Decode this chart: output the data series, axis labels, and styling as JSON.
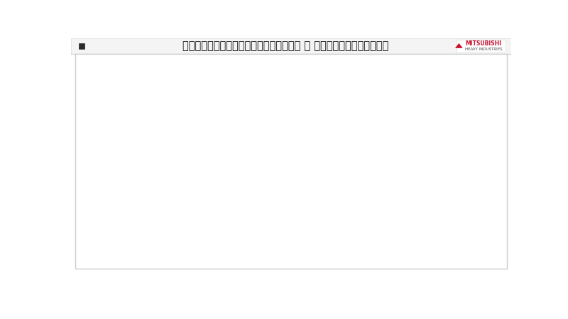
{
  "title": "デジタルエクスペリエンスデザインの紹介 － システムアーキテクチャー",
  "bg_color": "#ffffff",
  "title_marker_color": "#c8102e",
  "mitsubishi_color": "#c8102e",
  "row_label_bg": "#6b8fa8",
  "section_label_bg": "#4a6e87",
  "physical_row_bg": "#c8102e",
  "back_office_bg": "#8a9faf",
  "front_office_bg": "#b0c4d0",
  "cyber_section_bg": "#dce8ef",
  "cyber_row_alt_bg": "#e5edf3",
  "teal_arrow": "#00b4c8",
  "dashed_line_color": "#aaaaaa",
  "box_border": "#bbbbbb"
}
